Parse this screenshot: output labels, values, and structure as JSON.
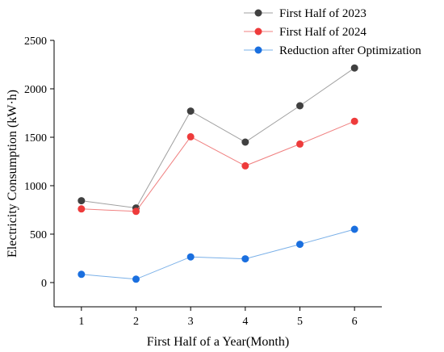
{
  "chart_data": {
    "type": "line",
    "title": "",
    "xlabel": "First Half of a Year(Month)",
    "ylabel": "Electricity Consumption (kW·h)",
    "x": [
      1,
      2,
      3,
      4,
      5,
      6
    ],
    "x_ticks": [
      "1",
      "2",
      "3",
      "4",
      "5",
      "6"
    ],
    "xlim": [
      0.5,
      6.5
    ],
    "ylim": [
      -250,
      2500
    ],
    "y_ticks": [
      "0",
      "500",
      "1000",
      "1500",
      "2000",
      "2500"
    ],
    "grid": false,
    "legend_position": "top-right",
    "series": [
      {
        "name": "First Half of 2023",
        "color": "#404040",
        "line_color": "#a0a0a0",
        "values": [
          845,
          770,
          1770,
          1450,
          1825,
          2215
        ]
      },
      {
        "name": "First Half of 2024",
        "color": "#ee3b3b",
        "line_color": "#f08080",
        "values": [
          760,
          735,
          1505,
          1205,
          1430,
          1665
        ]
      },
      {
        "name": "Reduction after Optimization",
        "color": "#1a6fdf",
        "line_color": "#7ab0e8",
        "values": [
          85,
          35,
          265,
          245,
          395,
          550
        ]
      }
    ]
  }
}
